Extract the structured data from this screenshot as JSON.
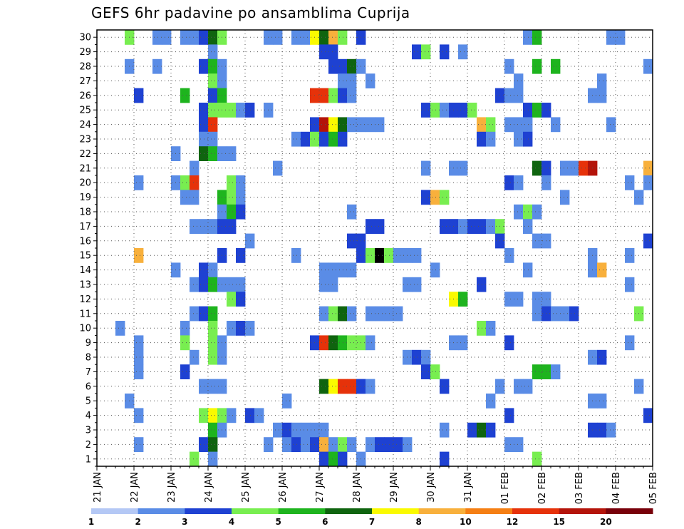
{
  "chart_data": {
    "type": "heatmap",
    "title": "GEFS 6hr padavine po ansamblima Cuprija",
    "x_tick_labels": [
      "21 JAN",
      "22 JAN",
      "23 JAN",
      "24 JAN",
      "25 JAN",
      "26 JAN",
      "27 JAN",
      "28 JAN",
      "29 JAN",
      "30 JAN",
      "31 JAN",
      "01 FEB",
      "02 FEB",
      "03 FEB",
      "04 FEB",
      "05 FEB"
    ],
    "x_range_days": [
      0,
      15
    ],
    "y_tick_labels": [
      "1",
      "2",
      "3",
      "4",
      "5",
      "6",
      "7",
      "8",
      "9",
      "10",
      "11",
      "12",
      "13",
      "14",
      "15",
      "16",
      "17",
      "18",
      "19",
      "20",
      "21",
      "22",
      "23",
      "24",
      "25",
      "26",
      "27",
      "28",
      "29",
      "30"
    ],
    "y_range": [
      0,
      30
    ],
    "grid": true,
    "step_days": 0.25,
    "colorbar": {
      "levels": [
        1,
        2,
        3,
        4,
        5,
        6,
        7,
        8,
        10,
        12,
        15,
        20
      ],
      "labels": [
        "1",
        "2",
        "3",
        "4",
        "5",
        "6",
        "7",
        "8",
        "10",
        "12",
        "15",
        "20"
      ],
      "colors": [
        "#b4c8f5",
        "#5a8ce6",
        "#1e41d2",
        "#78ee50",
        "#1eb41e",
        "#0f640f",
        "#fafa00",
        "#f8b03c",
        "#f57f14",
        "#e6320a",
        "#b4140a",
        "#78000a"
      ]
    },
    "cells": [
      [
        0.75,
        30,
        3
      ],
      [
        1.5,
        30,
        1
      ],
      [
        1.75,
        30,
        1
      ],
      [
        2.25,
        30,
        1
      ],
      [
        2.5,
        30,
        1
      ],
      [
        2.75,
        30,
        2
      ],
      [
        3.0,
        30,
        5
      ],
      [
        3.25,
        30,
        3
      ],
      [
        4.5,
        30,
        1
      ],
      [
        4.75,
        30,
        1
      ],
      [
        5.25,
        30,
        1
      ],
      [
        5.5,
        30,
        1
      ],
      [
        5.75,
        30,
        6
      ],
      [
        6.0,
        30,
        5
      ],
      [
        6.25,
        30,
        7
      ],
      [
        6.5,
        30,
        3
      ],
      [
        7.0,
        30,
        2
      ],
      [
        11.5,
        30,
        1
      ],
      [
        11.75,
        30,
        4
      ],
      [
        13.75,
        30,
        1
      ],
      [
        14.0,
        30,
        1
      ],
      [
        3.0,
        29,
        1
      ],
      [
        6.0,
        29,
        2
      ],
      [
        6.25,
        29,
        2
      ],
      [
        8.5,
        29,
        2
      ],
      [
        8.75,
        29,
        3
      ],
      [
        9.25,
        29,
        2
      ],
      [
        9.75,
        29,
        1
      ],
      [
        0.75,
        28,
        1
      ],
      [
        1.5,
        28,
        1
      ],
      [
        2.75,
        28,
        2
      ],
      [
        3.0,
        28,
        4
      ],
      [
        3.25,
        28,
        1
      ],
      [
        6.25,
        28,
        2
      ],
      [
        6.5,
        28,
        2
      ],
      [
        6.75,
        28,
        5
      ],
      [
        7.0,
        28,
        1
      ],
      [
        11.0,
        28,
        1
      ],
      [
        11.75,
        28,
        4
      ],
      [
        12.25,
        28,
        4
      ],
      [
        14.75,
        28,
        1
      ],
      [
        3.0,
        27,
        3
      ],
      [
        3.25,
        27,
        1
      ],
      [
        6.5,
        27,
        1
      ],
      [
        6.75,
        27,
        1
      ],
      [
        7.25,
        27,
        1
      ],
      [
        11.25,
        27,
        1
      ],
      [
        13.5,
        27,
        1
      ],
      [
        1.0,
        26,
        2
      ],
      [
        2.25,
        26,
        4
      ],
      [
        3.0,
        26,
        2
      ],
      [
        3.25,
        26,
        4
      ],
      [
        5.75,
        26,
        9
      ],
      [
        6.0,
        26,
        9
      ],
      [
        6.25,
        26,
        3
      ],
      [
        6.5,
        26,
        2
      ],
      [
        6.75,
        26,
        1
      ],
      [
        10.75,
        26,
        2
      ],
      [
        11.0,
        26,
        1
      ],
      [
        11.25,
        26,
        1
      ],
      [
        13.25,
        26,
        1
      ],
      [
        13.5,
        26,
        1
      ],
      [
        2.75,
        25,
        2
      ],
      [
        3.0,
        25,
        3
      ],
      [
        3.25,
        25,
        3
      ],
      [
        3.5,
        25,
        3
      ],
      [
        3.75,
        25,
        1
      ],
      [
        4.0,
        25,
        2
      ],
      [
        4.5,
        25,
        1
      ],
      [
        8.75,
        25,
        2
      ],
      [
        9.0,
        25,
        3
      ],
      [
        9.25,
        25,
        1
      ],
      [
        9.5,
        25,
        2
      ],
      [
        9.75,
        25,
        2
      ],
      [
        10.0,
        25,
        3
      ],
      [
        11.5,
        25,
        2
      ],
      [
        11.75,
        25,
        4
      ],
      [
        12.0,
        25,
        2
      ],
      [
        2.75,
        24,
        2
      ],
      [
        3.0,
        24,
        9
      ],
      [
        5.75,
        24,
        2
      ],
      [
        6.0,
        24,
        10
      ],
      [
        6.25,
        24,
        6
      ],
      [
        6.5,
        24,
        5
      ],
      [
        6.75,
        24,
        1
      ],
      [
        7.0,
        24,
        1
      ],
      [
        7.25,
        24,
        1
      ],
      [
        7.5,
        24,
        1
      ],
      [
        10.25,
        24,
        7
      ],
      [
        10.5,
        24,
        3
      ],
      [
        11.0,
        24,
        1
      ],
      [
        11.25,
        24,
        1
      ],
      [
        11.5,
        24,
        1
      ],
      [
        12.25,
        24,
        1
      ],
      [
        13.75,
        24,
        1
      ],
      [
        2.75,
        23,
        1
      ],
      [
        3.0,
        23,
        1
      ],
      [
        5.25,
        23,
        1
      ],
      [
        5.5,
        23,
        2
      ],
      [
        5.75,
        23,
        3
      ],
      [
        6.0,
        23,
        2
      ],
      [
        6.25,
        23,
        4
      ],
      [
        6.5,
        23,
        2
      ],
      [
        10.25,
        23,
        2
      ],
      [
        10.5,
        23,
        1
      ],
      [
        11.25,
        23,
        1
      ],
      [
        11.5,
        23,
        2
      ],
      [
        2.0,
        22,
        1
      ],
      [
        2.75,
        22,
        5
      ],
      [
        3.0,
        22,
        4
      ],
      [
        3.25,
        22,
        1
      ],
      [
        3.5,
        22,
        1
      ],
      [
        2.5,
        21,
        1
      ],
      [
        4.75,
        21,
        1
      ],
      [
        8.75,
        21,
        1
      ],
      [
        9.5,
        21,
        1
      ],
      [
        9.75,
        21,
        1
      ],
      [
        11.75,
        21,
        5
      ],
      [
        12.0,
        21,
        2
      ],
      [
        12.5,
        21,
        1
      ],
      [
        12.75,
        21,
        1
      ],
      [
        13.0,
        21,
        9
      ],
      [
        13.25,
        21,
        10
      ],
      [
        14.75,
        21,
        7
      ],
      [
        1.0,
        20,
        1
      ],
      [
        2.0,
        20,
        1
      ],
      [
        2.25,
        20,
        3
      ],
      [
        2.5,
        20,
        9
      ],
      [
        3.5,
        20,
        3
      ],
      [
        3.75,
        20,
        1
      ],
      [
        11.0,
        20,
        2
      ],
      [
        11.25,
        20,
        1
      ],
      [
        12.0,
        20,
        1
      ],
      [
        14.25,
        20,
        1
      ],
      [
        14.75,
        20,
        1
      ],
      [
        2.25,
        19,
        1
      ],
      [
        2.5,
        19,
        1
      ],
      [
        3.25,
        19,
        4
      ],
      [
        3.5,
        19,
        3
      ],
      [
        3.75,
        19,
        1
      ],
      [
        8.75,
        19,
        2
      ],
      [
        9.0,
        19,
        7
      ],
      [
        9.25,
        19,
        3
      ],
      [
        12.5,
        19,
        1
      ],
      [
        14.5,
        19,
        1
      ],
      [
        3.25,
        18,
        1
      ],
      [
        3.5,
        18,
        4
      ],
      [
        3.75,
        18,
        2
      ],
      [
        6.75,
        18,
        1
      ],
      [
        11.25,
        18,
        1
      ],
      [
        11.5,
        18,
        3
      ],
      [
        11.75,
        18,
        1
      ],
      [
        2.5,
        17,
        1
      ],
      [
        2.75,
        17,
        1
      ],
      [
        3.0,
        17,
        1
      ],
      [
        3.25,
        17,
        2
      ],
      [
        3.5,
        17,
        2
      ],
      [
        7.25,
        17,
        2
      ],
      [
        7.5,
        17,
        2
      ],
      [
        9.25,
        17,
        2
      ],
      [
        9.5,
        17,
        2
      ],
      [
        9.75,
        17,
        1
      ],
      [
        10.0,
        17,
        2
      ],
      [
        10.25,
        17,
        2
      ],
      [
        10.5,
        17,
        1
      ],
      [
        10.75,
        17,
        3
      ],
      [
        11.5,
        17,
        1
      ],
      [
        4.0,
        16,
        1
      ],
      [
        6.75,
        16,
        2
      ],
      [
        7.0,
        16,
        2
      ],
      [
        10.75,
        16,
        2
      ],
      [
        11.75,
        16,
        1
      ],
      [
        12.0,
        16,
        1
      ],
      [
        14.75,
        16,
        2
      ],
      [
        1.0,
        15,
        7
      ],
      [
        3.25,
        15,
        2
      ],
      [
        3.75,
        15,
        2
      ],
      [
        5.25,
        15,
        1
      ],
      [
        7.0,
        15,
        2
      ],
      [
        7.25,
        15,
        3
      ],
      [
        7.5,
        15,
        12
      ],
      [
        7.75,
        15,
        3
      ],
      [
        8.0,
        15,
        1
      ],
      [
        8.25,
        15,
        1
      ],
      [
        8.5,
        15,
        1
      ],
      [
        11.0,
        15,
        1
      ],
      [
        13.25,
        15,
        1
      ],
      [
        14.25,
        15,
        1
      ],
      [
        2.0,
        14,
        1
      ],
      [
        2.75,
        14,
        2
      ],
      [
        3.0,
        14,
        1
      ],
      [
        6.0,
        14,
        1
      ],
      [
        6.25,
        14,
        1
      ],
      [
        6.5,
        14,
        1
      ],
      [
        6.75,
        14,
        1
      ],
      [
        9.0,
        14,
        1
      ],
      [
        11.5,
        14,
        1
      ],
      [
        13.25,
        14,
        1
      ],
      [
        13.5,
        14,
        7
      ],
      [
        2.5,
        13,
        1
      ],
      [
        2.75,
        13,
        2
      ],
      [
        3.0,
        13,
        4
      ],
      [
        3.25,
        13,
        1
      ],
      [
        3.5,
        13,
        1
      ],
      [
        3.75,
        13,
        1
      ],
      [
        6.0,
        13,
        1
      ],
      [
        6.25,
        13,
        1
      ],
      [
        8.25,
        13,
        1
      ],
      [
        8.5,
        13,
        1
      ],
      [
        10.25,
        13,
        2
      ],
      [
        14.25,
        13,
        1
      ],
      [
        3.5,
        12,
        3
      ],
      [
        3.75,
        12,
        2
      ],
      [
        9.5,
        12,
        6
      ],
      [
        9.75,
        12,
        4
      ],
      [
        11.0,
        12,
        1
      ],
      [
        11.25,
        12,
        1
      ],
      [
        11.75,
        12,
        1
      ],
      [
        12.0,
        12,
        1
      ],
      [
        2.5,
        11,
        1
      ],
      [
        2.75,
        11,
        2
      ],
      [
        3.0,
        11,
        4
      ],
      [
        6.0,
        11,
        1
      ],
      [
        6.25,
        11,
        3
      ],
      [
        6.5,
        11,
        5
      ],
      [
        6.75,
        11,
        1
      ],
      [
        7.25,
        11,
        1
      ],
      [
        7.5,
        11,
        1
      ],
      [
        7.75,
        11,
        1
      ],
      [
        8.0,
        11,
        1
      ],
      [
        11.75,
        11,
        1
      ],
      [
        12.0,
        11,
        2
      ],
      [
        12.25,
        11,
        1
      ],
      [
        12.5,
        11,
        1
      ],
      [
        12.75,
        11,
        2
      ],
      [
        14.5,
        11,
        3
      ],
      [
        0.5,
        10,
        1
      ],
      [
        2.25,
        10,
        1
      ],
      [
        3.0,
        10,
        3
      ],
      [
        3.5,
        10,
        1
      ],
      [
        3.75,
        10,
        2
      ],
      [
        4.0,
        10,
        1
      ],
      [
        10.25,
        10,
        3
      ],
      [
        10.5,
        10,
        1
      ],
      [
        1.0,
        9,
        1
      ],
      [
        2.25,
        9,
        3
      ],
      [
        3.0,
        9,
        3
      ],
      [
        3.25,
        9,
        1
      ],
      [
        5.75,
        9,
        2
      ],
      [
        6.0,
        9,
        9
      ],
      [
        6.25,
        9,
        5
      ],
      [
        6.5,
        9,
        4
      ],
      [
        6.75,
        9,
        3
      ],
      [
        7.0,
        9,
        3
      ],
      [
        7.25,
        9,
        1
      ],
      [
        9.5,
        9,
        1
      ],
      [
        9.75,
        9,
        1
      ],
      [
        11.0,
        9,
        2
      ],
      [
        14.25,
        9,
        1
      ],
      [
        1.0,
        8,
        1
      ],
      [
        2.5,
        8,
        1
      ],
      [
        3.0,
        8,
        3
      ],
      [
        3.25,
        8,
        1
      ],
      [
        8.25,
        8,
        1
      ],
      [
        8.5,
        8,
        2
      ],
      [
        8.75,
        8,
        1
      ],
      [
        13.25,
        8,
        1
      ],
      [
        13.5,
        8,
        2
      ],
      [
        1.0,
        7,
        1
      ],
      [
        2.25,
        7,
        2
      ],
      [
        8.75,
        7,
        2
      ],
      [
        9.0,
        7,
        3
      ],
      [
        11.75,
        7,
        4
      ],
      [
        12.0,
        7,
        4
      ],
      [
        12.25,
        7,
        1
      ],
      [
        2.75,
        6,
        1
      ],
      [
        3.0,
        6,
        1
      ],
      [
        3.25,
        6,
        1
      ],
      [
        6.0,
        6,
        5
      ],
      [
        6.25,
        6,
        6
      ],
      [
        6.5,
        6,
        9
      ],
      [
        6.75,
        6,
        9
      ],
      [
        7.0,
        6,
        2
      ],
      [
        7.25,
        6,
        1
      ],
      [
        9.25,
        6,
        2
      ],
      [
        10.75,
        6,
        1
      ],
      [
        11.25,
        6,
        1
      ],
      [
        11.5,
        6,
        1
      ],
      [
        14.5,
        6,
        1
      ],
      [
        0.75,
        5,
        1
      ],
      [
        5.0,
        5,
        1
      ],
      [
        10.5,
        5,
        1
      ],
      [
        13.25,
        5,
        1
      ],
      [
        13.5,
        5,
        1
      ],
      [
        1.0,
        4,
        1
      ],
      [
        2.75,
        4,
        3
      ],
      [
        3.0,
        4,
        6
      ],
      [
        3.25,
        4,
        3
      ],
      [
        3.5,
        4,
        1
      ],
      [
        4.0,
        4,
        2
      ],
      [
        4.25,
        4,
        1
      ],
      [
        11.0,
        4,
        2
      ],
      [
        14.75,
        4,
        2
      ],
      [
        3.0,
        3,
        4
      ],
      [
        3.25,
        3,
        1
      ],
      [
        4.75,
        3,
        1
      ],
      [
        5.0,
        3,
        2
      ],
      [
        5.25,
        3,
        1
      ],
      [
        5.5,
        3,
        1
      ],
      [
        5.75,
        3,
        1
      ],
      [
        6.0,
        3,
        1
      ],
      [
        9.25,
        3,
        1
      ],
      [
        10.0,
        3,
        2
      ],
      [
        10.25,
        3,
        5
      ],
      [
        10.5,
        3,
        2
      ],
      [
        13.25,
        3,
        2
      ],
      [
        13.5,
        3,
        2
      ],
      [
        13.75,
        3,
        1
      ],
      [
        1.0,
        2,
        1
      ],
      [
        2.75,
        2,
        2
      ],
      [
        3.0,
        2,
        5
      ],
      [
        4.5,
        2,
        1
      ],
      [
        5.0,
        2,
        1
      ],
      [
        5.25,
        2,
        2
      ],
      [
        5.5,
        2,
        1
      ],
      [
        5.75,
        2,
        2
      ],
      [
        6.0,
        2,
        7
      ],
      [
        6.25,
        2,
        1
      ],
      [
        6.5,
        2,
        3
      ],
      [
        6.75,
        2,
        1
      ],
      [
        7.25,
        2,
        1
      ],
      [
        7.5,
        2,
        2
      ],
      [
        7.75,
        2,
        2
      ],
      [
        8.0,
        2,
        2
      ],
      [
        8.25,
        2,
        1
      ],
      [
        11.0,
        2,
        1
      ],
      [
        11.25,
        2,
        1
      ],
      [
        2.5,
        1,
        3
      ],
      [
        3.0,
        1,
        1
      ],
      [
        6.0,
        1,
        2
      ],
      [
        6.25,
        1,
        4
      ],
      [
        6.5,
        1,
        2
      ],
      [
        7.0,
        1,
        1
      ],
      [
        9.25,
        1,
        2
      ],
      [
        11.75,
        1,
        3
      ]
    ]
  }
}
